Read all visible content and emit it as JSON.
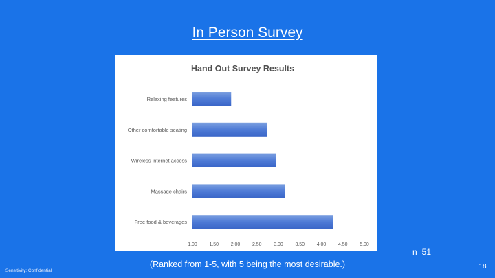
{
  "slide": {
    "title": "In Person Survey",
    "sample_size": "n=51",
    "caption": "(Ranked from 1-5, with 5 being the most desirable.)",
    "sensitivity": "Sensitivity: Confidential",
    "page_number": "18"
  },
  "colors": {
    "background": "#1a73e8",
    "bar_light": "#7b9fe0",
    "bar_dark": "#3a66c8"
  },
  "chart_data": {
    "type": "bar",
    "orientation": "horizontal",
    "title": "Hand Out Survey Results",
    "categories": [
      "Relaxing features",
      "Other comfortable seating",
      "Wireless internet access",
      "Massage chairs",
      "Free food & beverages"
    ],
    "values": [
      1.9,
      2.73,
      2.95,
      3.15,
      4.27
    ],
    "xlim": [
      1.0,
      5.0
    ],
    "xticks": [
      "1.00",
      "1.50",
      "2.00",
      "2.50",
      "3.00",
      "3.50",
      "4.00",
      "4.50",
      "5.00"
    ],
    "grid": false,
    "legend": "none"
  }
}
